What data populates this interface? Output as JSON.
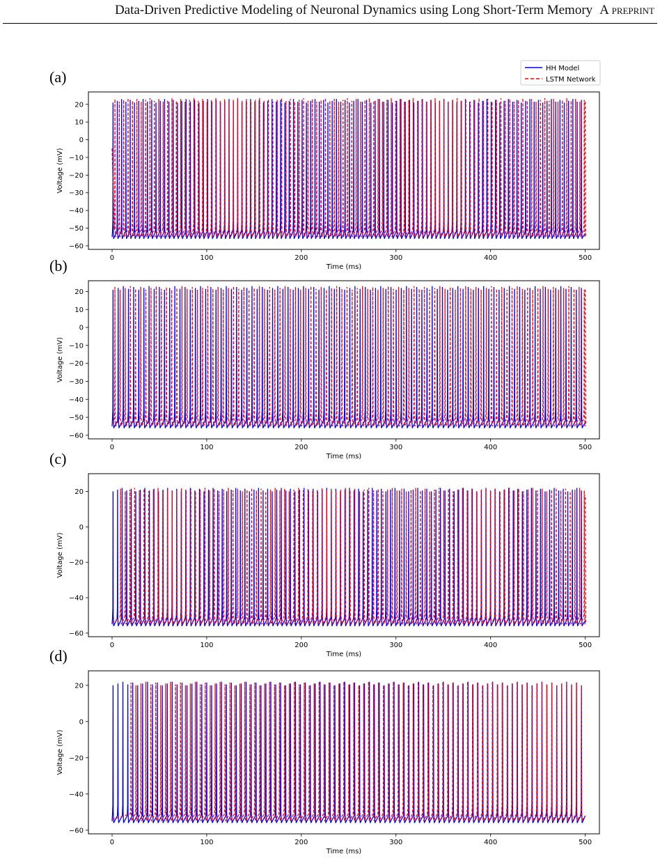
{
  "header": {
    "title": "Data-Driven Predictive Modeling of Neuronal Dynamics using Long Short-Term Memory",
    "tag": "A preprint"
  },
  "legend": {
    "placement": "top-right",
    "entries": [
      {
        "label": "HH Model",
        "color": "#0000ff",
        "style": "solid"
      },
      {
        "label": "LSTM Network",
        "color": "#ff0000",
        "style": "dashed"
      }
    ]
  },
  "colors": {
    "hh": "#0000ff",
    "lstm": "#ff0000",
    "axis": "#000000"
  },
  "chart_data": [
    {
      "panel": "(a)",
      "type": "line",
      "xlabel": "Time (ms)",
      "ylabel": "Voltage (mV)",
      "xlim": [
        -25,
        515
      ],
      "ylim": [
        -62,
        27
      ],
      "xticks": [
        0,
        100,
        200,
        300,
        400,
        500
      ],
      "yticks": [
        -60,
        -50,
        -40,
        -30,
        -20,
        -10,
        0,
        10,
        20
      ],
      "series": [
        {
          "name": "HH Model",
          "baseline": -56,
          "peak": 22,
          "first_spike": 1,
          "last_spike": 496,
          "spike_count": 110,
          "end_value": -53
        },
        {
          "name": "LSTM Network",
          "baseline": -55,
          "peak": 22.5,
          "first_spike": 3,
          "last_spike": 499,
          "spike_count": 108,
          "start_value": -5,
          "end_value": 22
        }
      ]
    },
    {
      "panel": "(b)",
      "type": "line",
      "xlabel": "Time (ms)",
      "ylabel": "Voltage (mV)",
      "xlim": [
        -25,
        515
      ],
      "ylim": [
        -62,
        26
      ],
      "xticks": [
        0,
        100,
        200,
        300,
        400,
        500
      ],
      "yticks": [
        -60,
        -50,
        -40,
        -30,
        -20,
        -10,
        0,
        10,
        20
      ],
      "series": [
        {
          "name": "HH Model",
          "baseline": -56,
          "peak": 22,
          "first_spike": 1,
          "last_spike": 496,
          "spike_count": 92,
          "end_value": -53
        },
        {
          "name": "LSTM Network",
          "baseline": -55,
          "peak": 22,
          "first_spike": 3,
          "last_spike": 499,
          "spike_count": 92,
          "end_value": 22
        }
      ]
    },
    {
      "panel": "(c)",
      "type": "line",
      "xlabel": "Time (ms)",
      "ylabel": "Voltage (mV)",
      "xlim": [
        -25,
        515
      ],
      "ylim": [
        -62,
        30
      ],
      "xticks": [
        0,
        100,
        200,
        300,
        400,
        500
      ],
      "yticks": [
        -60,
        -40,
        -20,
        0,
        20
      ],
      "series": [
        {
          "name": "HH Model",
          "baseline": -56,
          "peak": 21,
          "first_spike": 1,
          "last_spike": 496,
          "spike_count": 104,
          "end_value": -53
        },
        {
          "name": "LSTM Network",
          "baseline": -55,
          "peak": 21,
          "first_spike": 9,
          "last_spike": 499,
          "spike_count": 100,
          "end_value": 18
        }
      ]
    },
    {
      "panel": "(d)",
      "type": "line",
      "xlabel": "Time (ms)",
      "ylabel": "Voltage (mV)",
      "xlim": [
        -25,
        515
      ],
      "ylim": [
        -62,
        28
      ],
      "xticks": [
        0,
        100,
        200,
        300,
        400,
        500
      ],
      "yticks": [
        -60,
        -40,
        -20,
        0,
        20
      ],
      "series": [
        {
          "name": "HH Model",
          "baseline": -56,
          "peak": 21,
          "first_spike": 1,
          "last_spike": 496,
          "spike_count": 96,
          "end_value": -52
        },
        {
          "name": "LSTM Network",
          "baseline": -55,
          "peak": 21,
          "first_spike": 20,
          "last_spike": 496,
          "spike_count": 92,
          "end_value": -52
        }
      ]
    }
  ]
}
